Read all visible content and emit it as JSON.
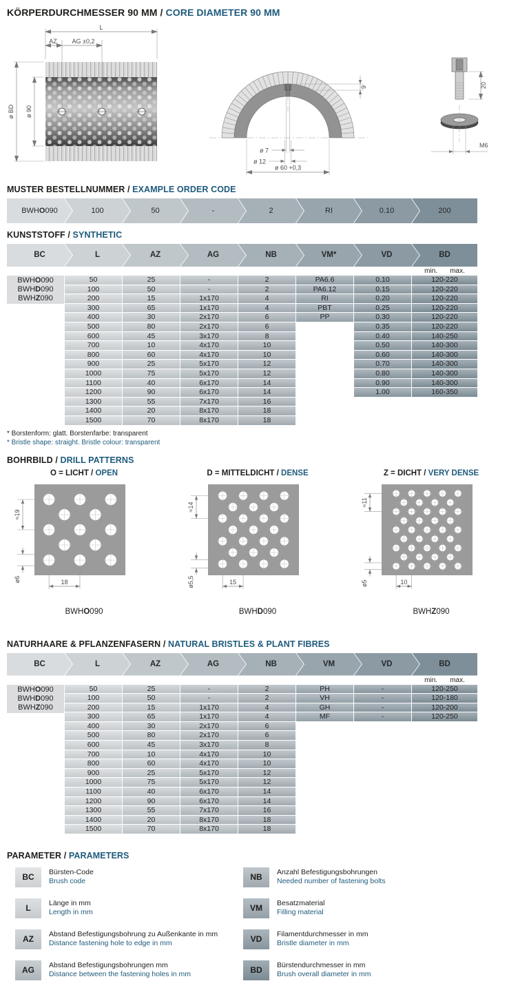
{
  "sep": " / ",
  "colors": {
    "accent_blue": "#1e5a7c",
    "ink": "#1d1d1b",
    "header_ramp": [
      "#d9dcde",
      "#cdd2d5",
      "#c0c7cb",
      "#b3bcc1",
      "#a6b0b7",
      "#98a5ad",
      "#8b9aa3",
      "#7e8f99"
    ],
    "column_ramp": [
      "#dadcde",
      "#d2d6d9",
      "#c5cbcf",
      "#b7bfc4",
      "#aab3ba",
      "#9ca8b0",
      "#8f9da5",
      "#82929b"
    ],
    "pattern_gray": "#9b9b9b"
  },
  "title": {
    "de": "KÖRPERDURCHMESSER 90 MM",
    "en": "CORE DIAMETER 90 MM"
  },
  "drawings": {
    "side": {
      "dim_l": "L",
      "dim_az": "AZ",
      "dim_ag": "AG ±0,2",
      "dim_bd": "ø BD",
      "dim_core": "ø 90"
    },
    "section": {
      "dim_depth": "9",
      "dim_hole": "ø 7",
      "dim_cbore": "ø 12",
      "dim_bore": "ø 60 +0,3"
    },
    "screw": {
      "dim_len": "20",
      "thread": "M6"
    }
  },
  "order": {
    "heading": {
      "de": "MUSTER BESTELLNUMMER",
      "en": "EXAMPLE ORDER CODE"
    },
    "segments": [
      [
        "BWH",
        "O",
        "090"
      ],
      "100",
      "50",
      "-",
      "2",
      "RI",
      "0.10",
      "200"
    ]
  },
  "synthetic": {
    "heading": {
      "de": "KUNSTSTOFF",
      "en": "SYNTHETIC"
    },
    "columns": [
      "BC",
      "L",
      "AZ",
      "AG",
      "NB",
      "VM*",
      "VD",
      "BD"
    ],
    "bd_sub": [
      "min.",
      "max."
    ],
    "codes": [
      [
        "BWH",
        "O",
        "090"
      ],
      [
        "BWH",
        "D",
        "090"
      ],
      [
        "BWH",
        "Z",
        "090"
      ]
    ],
    "L": [
      "50",
      "100",
      "200",
      "300",
      "400",
      "500",
      "600",
      "700",
      "800",
      "900",
      "1000",
      "1100",
      "1200",
      "1300",
      "1400",
      "1500"
    ],
    "AZ": [
      "25",
      "50",
      "15",
      "65",
      "30",
      "80",
      "45",
      "10",
      "60",
      "25",
      "75",
      "40",
      "90",
      "55",
      "20",
      "70"
    ],
    "AG": [
      "-",
      "-",
      "1x170",
      "1x170",
      "2x170",
      "2x170",
      "3x170",
      "4x170",
      "4x170",
      "5x170",
      "5x170",
      "6x170",
      "6x170",
      "7x170",
      "8x170",
      "8x170"
    ],
    "NB": [
      "2",
      "2",
      "4",
      "4",
      "6",
      "6",
      "8",
      "10",
      "10",
      "12",
      "12",
      "14",
      "14",
      "16",
      "18",
      "18"
    ],
    "VM": [
      "PA6.6",
      "PA6.12",
      "RI",
      "PBT",
      "PP"
    ],
    "VD": [
      "0.10",
      "0.15",
      "0.20",
      "0.25",
      "0.30",
      "0.35",
      "0.40",
      "0.50",
      "0.60",
      "0.70",
      "0.80",
      "0.90",
      "1.00"
    ],
    "BD": [
      "120-220",
      "120-220",
      "120-220",
      "120-220",
      "120-220",
      "120-220",
      "140-250",
      "140-300",
      "140-300",
      "140-300",
      "140-300",
      "140-300",
      "160-350"
    ],
    "footnotes": {
      "de": "* Borstenform: glatt. Borstenfarbe: transparent",
      "en": "* Bristle shape: straight. Bristle colour: transparent"
    }
  },
  "drill": {
    "heading": {
      "de": "BOHRBILD",
      "en": "DRILL PATTERNS"
    },
    "patterns": [
      {
        "label": {
          "de": "O = LICHT",
          "en": "OPEN"
        },
        "code": [
          "BWH",
          "O",
          "090"
        ],
        "dim_v": "≈19",
        "dim_d": "ø6",
        "dim_h": "18",
        "rows": [
          3,
          2,
          3,
          2,
          3
        ]
      },
      {
        "label": {
          "de": "D = MITTELDICHT",
          "en": "DENSE"
        },
        "code": [
          "BWH",
          "D",
          "090"
        ],
        "dim_v": "≈14",
        "dim_d": "ø5,5",
        "dim_h": "15",
        "rows": [
          4,
          3,
          4,
          3,
          4,
          3,
          4
        ]
      },
      {
        "label": {
          "de": "Z = DICHT",
          "en": "VERY DENSE"
        },
        "code": [
          "BWH",
          "Z",
          "090"
        ],
        "dim_v": "≈11",
        "dim_d": "ø5",
        "dim_h": "10",
        "rows": [
          5,
          4,
          5,
          4,
          5,
          4,
          5,
          4,
          5
        ]
      }
    ]
  },
  "natural": {
    "heading": {
      "de": "NATURHAARE & PFLANZENFASERN",
      "en": "NATURAL BRISTLES & PLANT FIBRES"
    },
    "columns": [
      "BC",
      "L",
      "AZ",
      "AG",
      "NB",
      "VM",
      "VD",
      "BD"
    ],
    "bd_sub": [
      "min.",
      "max."
    ],
    "codes": [
      [
        "BWH",
        "O",
        "090"
      ],
      [
        "BWH",
        "D",
        "090"
      ],
      [
        "BWH",
        "Z",
        "090"
      ]
    ],
    "L": [
      "50",
      "100",
      "200",
      "300",
      "400",
      "500",
      "600",
      "700",
      "800",
      "900",
      "1000",
      "1100",
      "1200",
      "1300",
      "1400",
      "1500"
    ],
    "AZ": [
      "25",
      "50",
      "15",
      "65",
      "30",
      "80",
      "45",
      "10",
      "60",
      "25",
      "75",
      "40",
      "90",
      "55",
      "20",
      "70"
    ],
    "AG": [
      "-",
      "-",
      "1x170",
      "1x170",
      "2x170",
      "2x170",
      "3x170",
      "4x170",
      "4x170",
      "5x170",
      "5x170",
      "6x170",
      "6x170",
      "7x170",
      "8x170",
      "8x170"
    ],
    "NB": [
      "2",
      "2",
      "4",
      "4",
      "6",
      "6",
      "8",
      "10",
      "10",
      "12",
      "12",
      "14",
      "14",
      "16",
      "18",
      "18"
    ],
    "VM": [
      "PH",
      "VH",
      "GH",
      "MF"
    ],
    "VD": [
      "-",
      "-",
      "-",
      "-"
    ],
    "BD": [
      "120-250",
      "120-180",
      "120-200",
      "120-250"
    ]
  },
  "params": {
    "heading": {
      "de": "PARAMETER",
      "en": "PARAMETERS"
    },
    "items": [
      {
        "code": "BC",
        "de": "Bürsten-Code",
        "en": "Brush code"
      },
      {
        "code": "L",
        "de": "Länge in mm",
        "en": "Length in mm"
      },
      {
        "code": "AZ",
        "de": "Abstand Befestigungsbohrung zu Außenkante in mm",
        "en": "Distance fastening hole to edge in mm"
      },
      {
        "code": "AG",
        "de": "Abstand Befestigungsbohrungen mm",
        "en": "Distance between the fastening holes in mm"
      },
      {
        "code": "NB",
        "de": "Anzahl Befestigungsbohrungen",
        "en": "Needed number of fastening bolts"
      },
      {
        "code": "VM",
        "de": "Besatzmaterial",
        "en": "Filling material"
      },
      {
        "code": "VD",
        "de": "Filamentdurchmesser in mm",
        "en": "Bristle diameter in mm"
      },
      {
        "code": "BD",
        "de": "Bürstendurchmesser in mm",
        "en": "Brush overall diameter in mm"
      }
    ]
  }
}
